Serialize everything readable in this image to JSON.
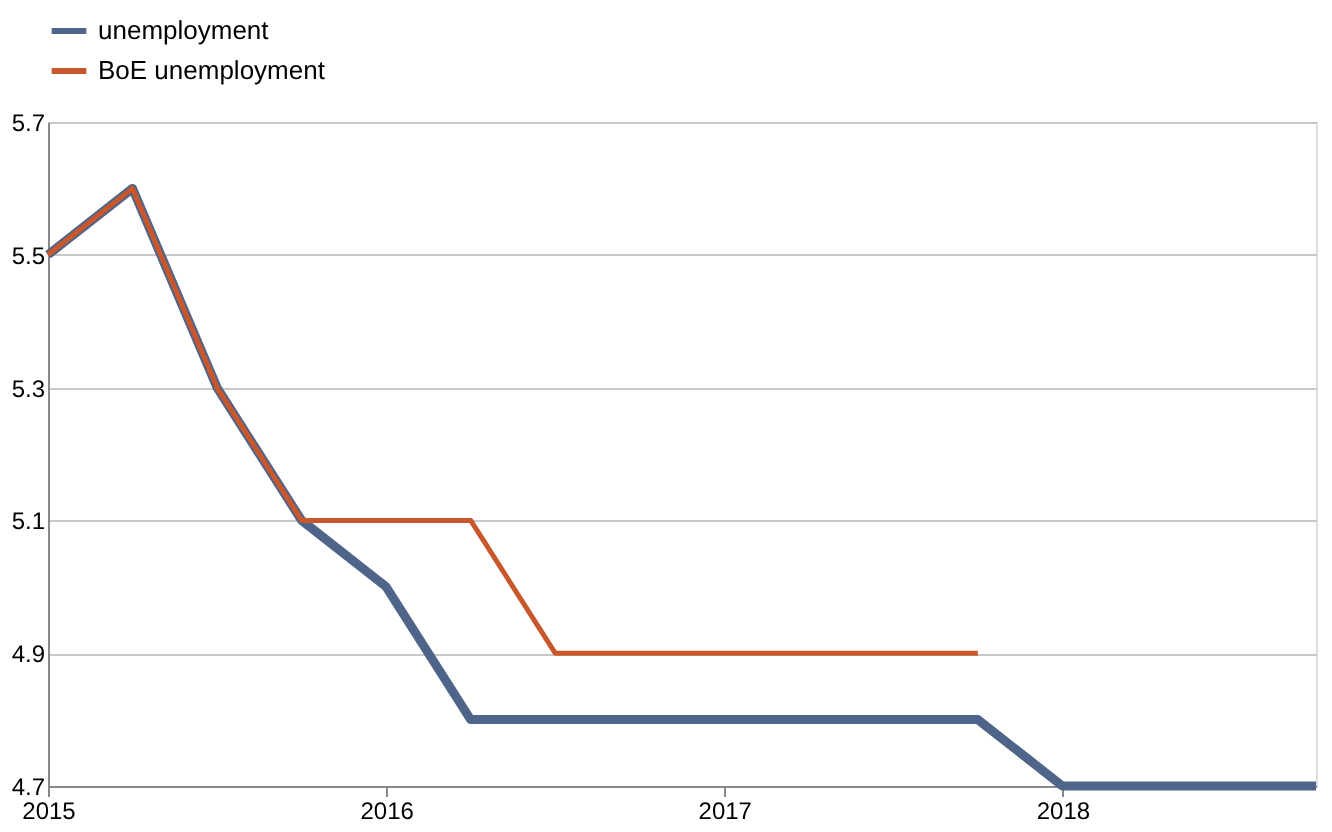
{
  "chart_data": {
    "type": "line",
    "x": [
      2015,
      2015.25,
      2015.5,
      2015.75,
      2016,
      2016.25,
      2016.5,
      2016.75,
      2017,
      2017.25,
      2017.5,
      2017.75,
      2018,
      2018.25,
      2018.5,
      2018.75
    ],
    "series": [
      {
        "name": "unemployment",
        "color": "#4f6489",
        "values": [
          5.5,
          5.6,
          5.3,
          5.1,
          5.0,
          4.8,
          4.8,
          4.8,
          4.8,
          4.8,
          4.8,
          4.8,
          4.7,
          4.7,
          4.7,
          4.7
        ]
      },
      {
        "name": "BoE unemployment",
        "color": "#c8572b",
        "values": [
          5.5,
          5.6,
          5.3,
          5.1,
          5.1,
          5.1,
          4.9,
          4.9,
          4.9,
          4.9,
          4.9,
          4.9,
          null,
          null,
          null,
          null
        ]
      }
    ],
    "xlim": [
      2015,
      2018.75
    ],
    "xticks": [
      2015,
      2016,
      2017,
      2018
    ],
    "ylim": [
      4.7,
      5.7
    ],
    "yticks": [
      4.7,
      4.9,
      5.1,
      5.3,
      5.5,
      5.7
    ],
    "grid": "y",
    "legend": "top",
    "marker": "none",
    "line_style": "solid"
  }
}
